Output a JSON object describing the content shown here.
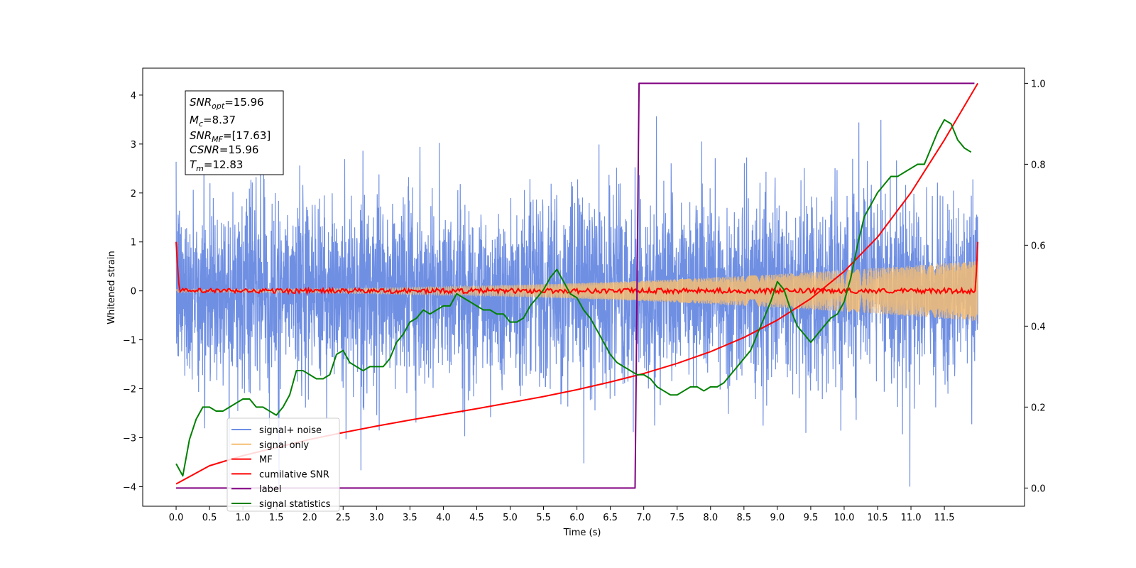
{
  "chart_data": {
    "type": "line",
    "xlabel": "Time (s)",
    "ylabel": "Whitened strain",
    "xlim": [
      -0.5,
      12.7
    ],
    "ylim": [
      -4.4,
      4.55
    ],
    "y2lim": [
      -0.045,
      1.0375
    ],
    "x_ticks": [
      "0.0",
      "0.5",
      "1.0",
      "1.5",
      "2.0",
      "2.5",
      "3.0",
      "3.5",
      "4.0",
      "4.5",
      "5.0",
      "5.5",
      "6.0",
      "6.5",
      "7.0",
      "7.5",
      "8.0",
      "8.5",
      "9.0",
      "9.5",
      "10.0",
      "10.5",
      "11.0",
      "11.5"
    ],
    "y_ticks": [
      "−4",
      "−3",
      "−2",
      "−1",
      "0",
      "1",
      "2",
      "3",
      "4"
    ],
    "y2_ticks": [
      "0.0",
      "0.2",
      "0.4",
      "0.6",
      "0.8",
      "1.0"
    ],
    "info_box": {
      "snr_opt": "=15.96",
      "mc": "=8.37",
      "snr_mf": "=[17.63]",
      "csnr": "=15.96",
      "tm": "=12.83"
    },
    "legend": {
      "position": "lower-left",
      "entries": [
        "signal+ noise",
        "signal only",
        "MF",
        "cumilative SNR",
        "label",
        "signal statistics"
      ]
    },
    "series": [
      {
        "name": "signal+ noise",
        "axis": "left",
        "color": "#6f8fe3",
        "kind": "noise",
        "duration": 12.0,
        "sigma": 1.0,
        "range": [
          -4.0,
          4.1
        ]
      },
      {
        "name": "signal only",
        "axis": "left",
        "color": "#f5bd73",
        "kind": "chirp",
        "duration": 12.0,
        "amplitude_start": 0.03,
        "amplitude_end": 0.62
      },
      {
        "name": "MF",
        "axis": "left",
        "color": "#ff0000",
        "kind": "mf",
        "start": 1.0,
        "end": 1.0,
        "noise_amplitude": 0.05
      },
      {
        "name": "cumilative SNR",
        "axis": "right",
        "color": "#ff0000",
        "x": [
          0.0,
          0.5,
          1.0,
          1.5,
          2.0,
          2.5,
          3.0,
          3.5,
          4.0,
          4.5,
          5.0,
          5.5,
          6.0,
          6.5,
          7.0,
          7.5,
          8.0,
          8.5,
          9.0,
          9.5,
          10.0,
          10.5,
          11.0,
          11.5,
          12.0
        ],
        "y": [
          0.01,
          0.055,
          0.08,
          0.1,
          0.12,
          0.137,
          0.153,
          0.168,
          0.182,
          0.196,
          0.211,
          0.226,
          0.243,
          0.262,
          0.283,
          0.308,
          0.337,
          0.372,
          0.415,
          0.468,
          0.535,
          0.62,
          0.73,
          0.86,
          1.0
        ]
      },
      {
        "name": "label",
        "axis": "right",
        "color": "#800080",
        "x": [
          0.0,
          6.87,
          6.93,
          11.95
        ],
        "y": [
          0.0,
          0.0,
          1.0,
          1.0
        ]
      },
      {
        "name": "signal statistics",
        "axis": "right",
        "color": "#008000",
        "x": [
          0.0,
          0.1,
          0.2,
          0.3,
          0.4,
          0.5,
          0.6,
          0.7,
          0.8,
          0.9,
          1.0,
          1.1,
          1.2,
          1.3,
          1.4,
          1.5,
          1.6,
          1.7,
          1.8,
          1.9,
          2.0,
          2.1,
          2.2,
          2.3,
          2.4,
          2.5,
          2.6,
          2.7,
          2.8,
          2.9,
          3.0,
          3.1,
          3.2,
          3.3,
          3.4,
          3.5,
          3.6,
          3.7,
          3.8,
          3.9,
          4.0,
          4.1,
          4.2,
          4.3,
          4.4,
          4.5,
          4.6,
          4.7,
          4.8,
          4.9,
          5.0,
          5.1,
          5.2,
          5.3,
          5.4,
          5.5,
          5.6,
          5.7,
          5.8,
          5.9,
          6.0,
          6.1,
          6.2,
          6.3,
          6.4,
          6.5,
          6.6,
          6.7,
          6.8,
          6.9,
          7.0,
          7.1,
          7.2,
          7.3,
          7.4,
          7.5,
          7.6,
          7.7,
          7.8,
          7.9,
          8.0,
          8.1,
          8.2,
          8.3,
          8.4,
          8.5,
          8.6,
          8.7,
          8.8,
          8.9,
          9.0,
          9.1,
          9.2,
          9.3,
          9.4,
          9.5,
          9.6,
          9.7,
          9.8,
          9.9,
          10.0,
          10.1,
          10.2,
          10.3,
          10.4,
          10.5,
          10.6,
          10.7,
          10.8,
          10.9,
          11.0,
          11.1,
          11.2,
          11.3,
          11.4,
          11.5,
          11.6,
          11.7,
          11.8,
          11.9
        ],
        "y": [
          0.06,
          0.03,
          0.12,
          0.17,
          0.2,
          0.2,
          0.19,
          0.19,
          0.2,
          0.21,
          0.22,
          0.22,
          0.2,
          0.2,
          0.19,
          0.18,
          0.2,
          0.23,
          0.29,
          0.29,
          0.28,
          0.27,
          0.27,
          0.28,
          0.33,
          0.34,
          0.31,
          0.3,
          0.29,
          0.3,
          0.3,
          0.3,
          0.32,
          0.36,
          0.38,
          0.41,
          0.42,
          0.44,
          0.43,
          0.44,
          0.45,
          0.45,
          0.48,
          0.47,
          0.46,
          0.45,
          0.44,
          0.44,
          0.43,
          0.43,
          0.41,
          0.41,
          0.42,
          0.45,
          0.47,
          0.49,
          0.52,
          0.54,
          0.51,
          0.48,
          0.47,
          0.44,
          0.42,
          0.39,
          0.36,
          0.33,
          0.31,
          0.3,
          0.29,
          0.28,
          0.28,
          0.27,
          0.25,
          0.24,
          0.23,
          0.23,
          0.24,
          0.25,
          0.25,
          0.24,
          0.25,
          0.25,
          0.26,
          0.28,
          0.3,
          0.32,
          0.34,
          0.38,
          0.42,
          0.46,
          0.51,
          0.49,
          0.44,
          0.4,
          0.38,
          0.36,
          0.38,
          0.4,
          0.42,
          0.43,
          0.46,
          0.52,
          0.6,
          0.67,
          0.7,
          0.73,
          0.75,
          0.77,
          0.77,
          0.78,
          0.79,
          0.8,
          0.8,
          0.84,
          0.88,
          0.91,
          0.9,
          0.86,
          0.84,
          0.83
        ]
      }
    ]
  }
}
